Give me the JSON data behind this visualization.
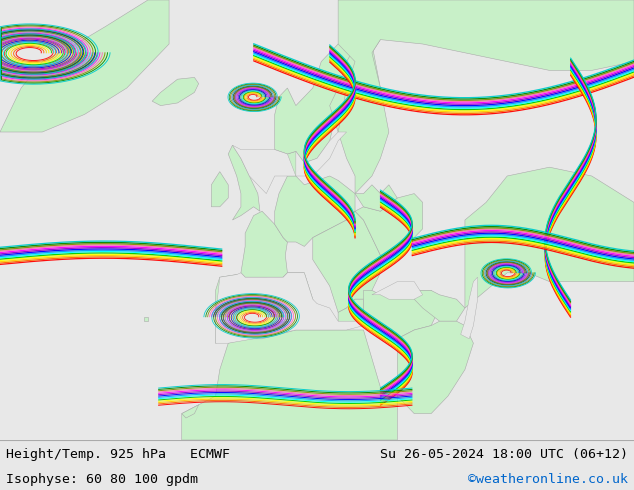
{
  "title_left": "Height/Temp. 925 hPa   ECMWF",
  "title_right": "Su 26-05-2024 18:00 UTC (06+12)",
  "subtitle_left": "Isophyse: 60 80 100 gpdm",
  "subtitle_right": "©weatheronline.co.uk",
  "subtitle_right_color": "#0066cc",
  "background_color": "#e8e8e8",
  "ocean_color": "#e8e8e8",
  "land_color": "#c8f0c8",
  "border_color": "#aaaaaa",
  "text_color": "#000000",
  "bottom_bar_color": "#d8d8d8",
  "fig_width": 6.34,
  "fig_height": 4.9,
  "dpi": 100,
  "title_fontsize": 9.5,
  "subtitle_fontsize": 9.5
}
